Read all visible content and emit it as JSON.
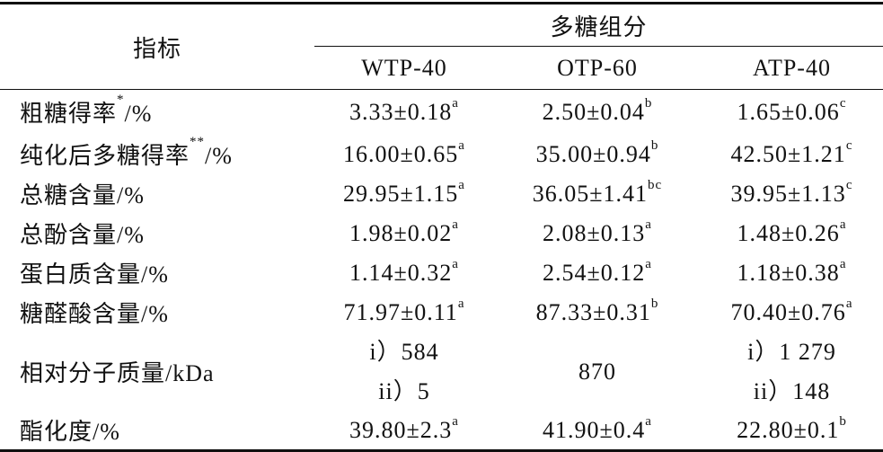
{
  "table": {
    "header": {
      "indicator": "指标",
      "group": "多糖组分",
      "columns": [
        "WTP-40",
        "OTP-60",
        "ATP-40"
      ]
    },
    "rows": [
      {
        "label": {
          "text": "粗糖得率",
          "sup": "*",
          "suffix": "/%"
        },
        "cells": [
          {
            "text": "3.33±0.18",
            "sup": "a"
          },
          {
            "text": "2.50±0.04",
            "sup": "b"
          },
          {
            "text": "1.65±0.06",
            "sup": "c"
          }
        ]
      },
      {
        "label": {
          "text": "纯化后多糖得率",
          "sup": "**",
          "suffix": "/%"
        },
        "cells": [
          {
            "text": "16.00±0.65",
            "sup": "a"
          },
          {
            "text": "35.00±0.94",
            "sup": "b"
          },
          {
            "text": "42.50±1.21",
            "sup": "c"
          }
        ]
      },
      {
        "label": {
          "text": "总糖含量/%"
        },
        "cells": [
          {
            "text": "29.95±1.15",
            "sup": "a"
          },
          {
            "text": "36.05±1.41",
            "sup": "bc"
          },
          {
            "text": "39.95±1.13",
            "sup": "c"
          }
        ]
      },
      {
        "label": {
          "text": "总酚含量/%"
        },
        "cells": [
          {
            "text": "1.98±0.02",
            "sup": "a"
          },
          {
            "text": "2.08±0.13",
            "sup": "a"
          },
          {
            "text": "1.48±0.26",
            "sup": "a"
          }
        ]
      },
      {
        "label": {
          "text": "蛋白质含量/%"
        },
        "cells": [
          {
            "text": "1.14±0.32",
            "sup": "a"
          },
          {
            "text": "2.54±0.12",
            "sup": "a"
          },
          {
            "text": "1.18±0.38",
            "sup": "a"
          }
        ]
      },
      {
        "label": {
          "text": "糖醛酸含量/%"
        },
        "cells": [
          {
            "text": "71.97±0.11",
            "sup": "a"
          },
          {
            "text": "87.33±0.31",
            "sup": "b"
          },
          {
            "text": "70.40±0.76",
            "sup": "a"
          }
        ]
      },
      {
        "label": {
          "text": "相对分子质量/kDa"
        },
        "cells": [
          {
            "lines": [
              "i）584",
              "ii）5"
            ]
          },
          {
            "text": "870"
          },
          {
            "lines": [
              "i）1 279",
              "ii）148"
            ]
          }
        ]
      },
      {
        "label": {
          "text": "酯化度/%"
        },
        "cells": [
          {
            "text": "39.80±2.3",
            "sup": "a"
          },
          {
            "text": "41.90±0.4",
            "sup": "a"
          },
          {
            "text": "22.80±0.1",
            "sup": "b"
          }
        ]
      }
    ]
  }
}
